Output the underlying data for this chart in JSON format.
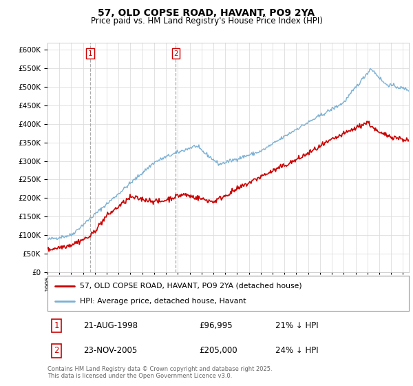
{
  "title": "57, OLD COPSE ROAD, HAVANT, PO9 2YA",
  "subtitle": "Price paid vs. HM Land Registry's House Price Index (HPI)",
  "legend_line1": "57, OLD COPSE ROAD, HAVANT, PO9 2YA (detached house)",
  "legend_line2": "HPI: Average price, detached house, Havant",
  "purchase1_date": "21-AUG-1998",
  "purchase1_price": "£96,995",
  "purchase1_hpi": "21% ↓ HPI",
  "purchase2_date": "23-NOV-2005",
  "purchase2_price": "£205,000",
  "purchase2_hpi": "24% ↓ HPI",
  "footer": "Contains HM Land Registry data © Crown copyright and database right 2025.\nThis data is licensed under the Open Government Licence v3.0.",
  "red_color": "#cc0000",
  "blue_color": "#7ab0d4",
  "background_color": "#ffffff",
  "grid_color": "#dddddd",
  "ylim": [
    0,
    620000
  ],
  "yticks": [
    0,
    50000,
    100000,
    150000,
    200000,
    250000,
    300000,
    350000,
    400000,
    450000,
    500000,
    550000,
    600000
  ],
  "x_start_year": 1995,
  "x_end_year": 2025
}
